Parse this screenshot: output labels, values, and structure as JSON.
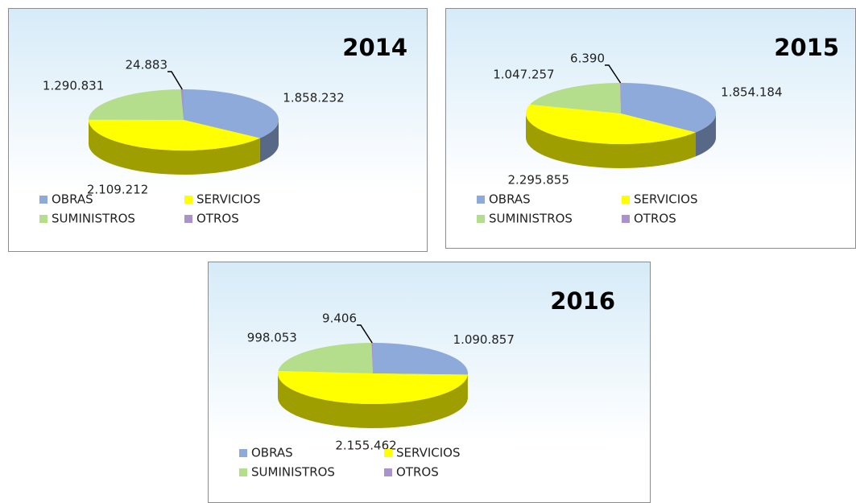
{
  "chart_data": [
    {
      "type": "pie",
      "title": "2014",
      "categories": [
        "OBRAS",
        "SERVICIOS",
        "SUMINISTROS",
        "OTROS"
      ],
      "values": [
        1858232,
        2109212,
        1290831,
        24883
      ],
      "value_labels": [
        "1.858.232",
        "2.109.212",
        "1.290.831",
        "24.883"
      ],
      "colors": [
        "#8eaadb",
        "#ffff00",
        "#b4dd8c",
        "#a993cc"
      ]
    },
    {
      "type": "pie",
      "title": "2015",
      "categories": [
        "OBRAS",
        "SERVICIOS",
        "SUMINISTROS",
        "OTROS"
      ],
      "values": [
        1854184,
        2295855,
        1047257,
        6390
      ],
      "value_labels": [
        "1.854.184",
        "2.295.855",
        "1.047.257",
        "6.390"
      ],
      "colors": [
        "#8eaadb",
        "#ffff00",
        "#b4dd8c",
        "#a993cc"
      ]
    },
    {
      "type": "pie",
      "title": "2016",
      "categories": [
        "OBRAS",
        "SERVICIOS",
        "SUMINISTROS",
        "OTROS"
      ],
      "values": [
        1090857,
        2155462,
        998053,
        9406
      ],
      "value_labels": [
        "1.090.857",
        "2.155.462",
        "998.053",
        "9.406"
      ],
      "colors": [
        "#8eaadb",
        "#ffff00",
        "#b4dd8c",
        "#a993cc"
      ]
    }
  ]
}
